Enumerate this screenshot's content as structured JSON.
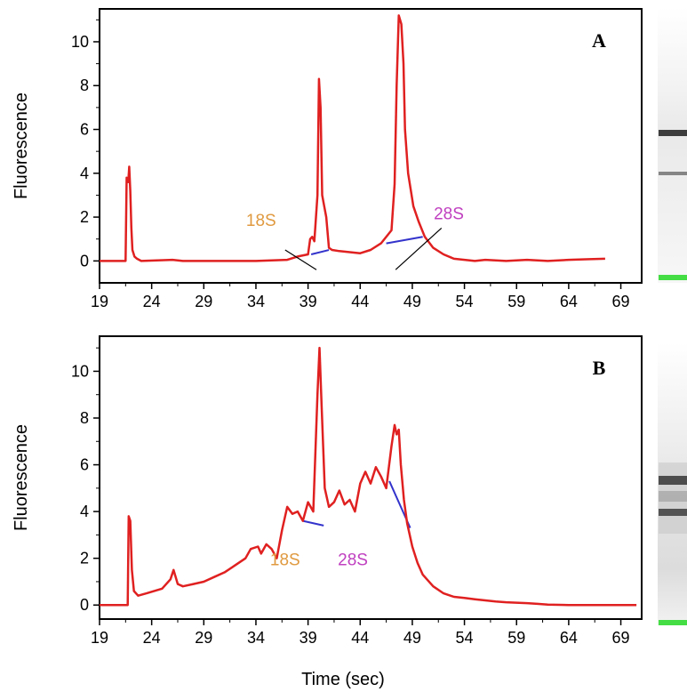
{
  "chart_data": [
    {
      "type": "line",
      "panel_label": "A",
      "xlabel": "",
      "ylabel": "Fluorescence",
      "xlim": [
        19,
        71
      ],
      "ylim": [
        -1,
        11.5
      ],
      "xticks": [
        19,
        24,
        29,
        34,
        39,
        44,
        49,
        54,
        59,
        64,
        69
      ],
      "yticks": [
        0,
        2,
        4,
        6,
        8,
        10
      ],
      "line_color": "#e02020",
      "series": [
        {
          "x": [
            19,
            21.5,
            21.6,
            21.75,
            21.85,
            21.95,
            22.05,
            22.15,
            22.35,
            22.6,
            23,
            26,
            27,
            34,
            37,
            38,
            39,
            39.2,
            39.4,
            39.6,
            39.9,
            40.05,
            40.2,
            40.35,
            40.55,
            40.75,
            41,
            41.3,
            42,
            44,
            45,
            46,
            47,
            47.3,
            47.5,
            47.7,
            47.95,
            48.15,
            48.3,
            48.6,
            49.1,
            49.6,
            50.2,
            51,
            52,
            53,
            54,
            55,
            56,
            58,
            60,
            62,
            64,
            66,
            67.5
          ],
          "y": [
            0,
            0,
            3.8,
            3.6,
            4.3,
            3.2,
            1.5,
            0.5,
            0.2,
            0.1,
            0,
            0.05,
            0,
            0,
            0.05,
            0.2,
            0.3,
            1.0,
            1.1,
            0.9,
            3.0,
            8.3,
            7.0,
            3.0,
            2.5,
            2.0,
            0.6,
            0.5,
            0.45,
            0.35,
            0.5,
            0.8,
            1.4,
            3.5,
            8.0,
            11.2,
            10.8,
            9.0,
            6.0,
            4.0,
            2.5,
            1.8,
            1.1,
            0.6,
            0.3,
            0.1,
            0.05,
            0,
            0.05,
            0,
            0.05,
            0,
            0.05,
            0.08,
            0.1
          ]
        }
      ],
      "baseline_segments": [
        {
          "color": "#3333cc",
          "x": [
            39.3,
            41.0
          ],
          "y": [
            0.3,
            0.5
          ]
        },
        {
          "color": "#3333cc",
          "x": [
            46.5,
            50.0
          ],
          "y": [
            0.8,
            1.1
          ]
        }
      ],
      "annotations": [
        {
          "text": "18S",
          "color": "#e09a40",
          "x": 34.5,
          "y": 1.6,
          "arrow_to": [
            39.8,
            -0.4
          ],
          "arrow_from": [
            36.8,
            0.5
          ]
        },
        {
          "text": "28S",
          "color": "#c040c0",
          "x": 52.5,
          "y": 1.9,
          "arrow_to": [
            47.4,
            -0.4
          ],
          "arrow_from": [
            51.8,
            1.5
          ]
        }
      ]
    },
    {
      "type": "line",
      "panel_label": "B",
      "xlabel": "Time (sec)",
      "ylabel": "Fluorescence",
      "xlim": [
        19,
        71
      ],
      "ylim": [
        -0.6,
        11.5
      ],
      "xticks": [
        19,
        24,
        29,
        34,
        39,
        44,
        49,
        54,
        59,
        64,
        69
      ],
      "yticks": [
        0,
        2,
        4,
        6,
        8,
        10
      ],
      "line_color": "#e02020",
      "series": [
        {
          "x": [
            19,
            21.7,
            21.8,
            21.95,
            22.1,
            22.3,
            22.7,
            23.5,
            25,
            25.8,
            26.1,
            26.5,
            27,
            28,
            29,
            30,
            31,
            32,
            33,
            33.5,
            34.2,
            34.5,
            35,
            35.5,
            36,
            36.5,
            37,
            37.5,
            38,
            38.5,
            39,
            39.5,
            39.9,
            40.1,
            40.3,
            40.6,
            41,
            41.5,
            42,
            42.5,
            43,
            43.5,
            44,
            44.5,
            45,
            45.5,
            46,
            46.5,
            47,
            47.3,
            47.5,
            47.7,
            47.9,
            48.2,
            48.5,
            49,
            49.5,
            50,
            51,
            52,
            53,
            54,
            55,
            56,
            57,
            58,
            59,
            60,
            61,
            62,
            64,
            66,
            69,
            70.5
          ],
          "y": [
            0,
            0,
            3.8,
            3.6,
            1.5,
            0.6,
            0.4,
            0.5,
            0.7,
            1.1,
            1.5,
            0.9,
            0.8,
            0.9,
            1.0,
            1.2,
            1.4,
            1.7,
            2.0,
            2.4,
            2.5,
            2.2,
            2.6,
            2.4,
            2.0,
            3.2,
            4.2,
            3.9,
            4.0,
            3.6,
            4.4,
            4.0,
            9.0,
            11.0,
            8.5,
            5.0,
            4.2,
            4.4,
            4.9,
            4.3,
            4.5,
            4.0,
            5.2,
            5.7,
            5.2,
            5.9,
            5.5,
            5.0,
            6.8,
            7.7,
            7.3,
            7.5,
            6.0,
            4.5,
            3.5,
            2.5,
            1.8,
            1.3,
            0.8,
            0.5,
            0.35,
            0.3,
            0.25,
            0.2,
            0.15,
            0.12,
            0.1,
            0.08,
            0.05,
            0.02,
            0,
            0,
            0,
            0
          ]
        }
      ],
      "baseline_segments": [
        {
          "color": "#3333cc",
          "x": [
            38.5,
            40.5
          ],
          "y": [
            3.6,
            3.4
          ]
        },
        {
          "color": "#3333cc",
          "x": [
            46.8,
            48.8
          ],
          "y": [
            5.3,
            3.3
          ]
        }
      ],
      "annotations": [
        {
          "text": "18S",
          "color": "#e09a40",
          "x": 36.8,
          "y": 1.7
        },
        {
          "text": "28S",
          "color": "#c040c0",
          "x": 43.3,
          "y": 1.7
        }
      ]
    }
  ],
  "colors": {
    "axis": "#000000",
    "band_dark": "#1a1a1a",
    "band_mid": "#555555",
    "marker_green": "#44dd44",
    "baseline_blue": "#3333cc"
  }
}
